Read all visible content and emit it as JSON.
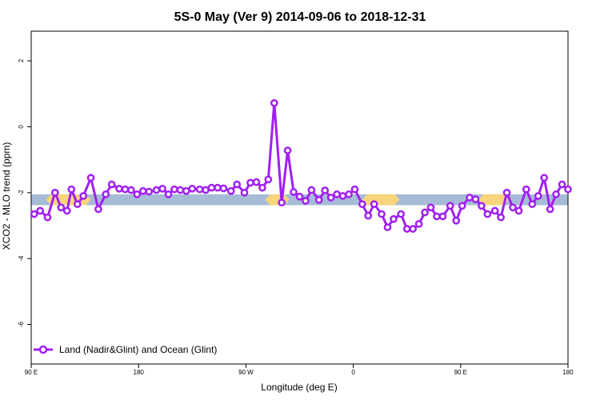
{
  "chart_data": {
    "type": "line",
    "title": "5S-0 May (Ver 9)   2014-09-06 to 2018-12-31",
    "xlabel": "Longitude (deg E)",
    "ylabel": "XCO2 - MLO trend (ppm)",
    "xlim": [
      0,
      360
    ],
    "ylim": [
      -7.2,
      2.9
    ],
    "x_ticks": [
      {
        "value": 0,
        "label": "90 E"
      },
      {
        "value": 72,
        "label": "180"
      },
      {
        "value": 144,
        "label": "90 W"
      },
      {
        "value": 216,
        "label": "0"
      },
      {
        "value": 288,
        "label": "90 E"
      },
      {
        "value": 360,
        "label": "180"
      }
    ],
    "y_ticks": [
      {
        "value": 2,
        "label": "2"
      },
      {
        "value": 0,
        "label": "0"
      },
      {
        "value": -2,
        "label": "-2"
      },
      {
        "value": -4,
        "label": "-4"
      },
      {
        "value": -6,
        "label": "-6"
      }
    ],
    "band": {
      "y_range": [
        -2.38,
        -2.05
      ],
      "ocean_color": "#a6bcd6",
      "land_color": "#f8d57c",
      "land_segments": [
        [
          10,
          40
        ],
        [
          157,
          173
        ],
        [
          222,
          247
        ],
        [
          300,
          320
        ]
      ]
    },
    "legend": {
      "position": "bottom-left"
    },
    "series": [
      {
        "name": "Land (Nadir&Glint) and Ocean (Glint)",
        "color": "#a020f0",
        "x": [
          2,
          6,
          11,
          16,
          20,
          24,
          27,
          31,
          35,
          40,
          45,
          50,
          54,
          59,
          63,
          67,
          71,
          75,
          79,
          84,
          88,
          92,
          96,
          100,
          104,
          108,
          113,
          117,
          121,
          125,
          129,
          134,
          138,
          143,
          147,
          151,
          155,
          159,
          163,
          168,
          172,
          176,
          180,
          184,
          188,
          193,
          197,
          201,
          205,
          209,
          213,
          217,
          222,
          226,
          230,
          235,
          239,
          243,
          248,
          252,
          256,
          260,
          264,
          268,
          272,
          276,
          281,
          285,
          289,
          294,
          298,
          302,
          306,
          311,
          315,
          319,
          323,
          327,
          332,
          336,
          340,
          344,
          348,
          352,
          356,
          360
        ],
        "y": [
          -2.65,
          -2.55,
          -2.75,
          -2.0,
          -2.45,
          -2.55,
          -1.9,
          -2.35,
          -2.1,
          -1.55,
          -2.5,
          -2.05,
          -1.75,
          -1.88,
          -1.9,
          -1.92,
          -2.05,
          -1.95,
          -1.97,
          -1.92,
          -1.88,
          -2.05,
          -1.9,
          -1.92,
          -1.95,
          -1.88,
          -1.9,
          -1.92,
          -1.85,
          -1.85,
          -1.87,
          -1.95,
          -1.75,
          -2.0,
          -1.7,
          -1.68,
          -1.85,
          -1.6,
          0.72,
          -2.3,
          -0.72,
          -1.98,
          -2.12,
          -2.25,
          -1.92,
          -2.22,
          -1.93,
          -2.15,
          -2.05,
          -2.1,
          -2.05,
          -1.9,
          -2.35,
          -2.7,
          -2.35,
          -2.65,
          -3.05,
          -2.8,
          -2.65,
          -3.1,
          -3.1,
          -2.95,
          -2.6,
          -2.45,
          -2.72,
          -2.72,
          -2.4,
          -2.85,
          -2.4,
          -2.15,
          -2.2,
          -2.4,
          -2.65,
          -2.55,
          -2.75,
          -2.0,
          -2.45,
          -2.55,
          -1.9,
          -2.35,
          -2.1,
          -1.55,
          -2.5,
          -2.05,
          -1.75,
          -1.9
        ]
      }
    ]
  }
}
